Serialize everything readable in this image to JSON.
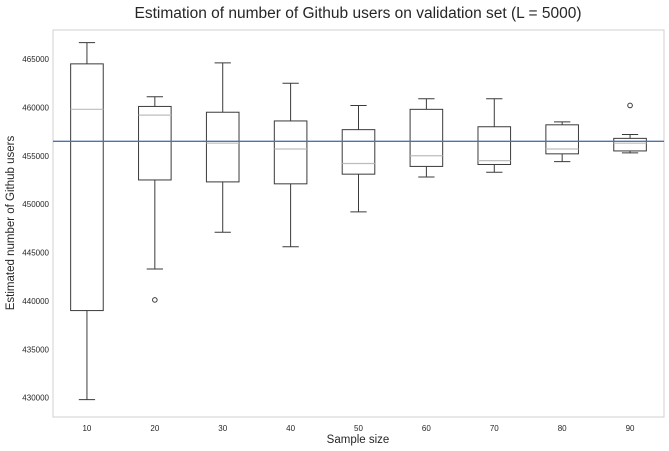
{
  "chart_data": {
    "type": "box",
    "title": "Estimation of number of Github users on validation set (L = 5000)",
    "xlabel": "Sample size",
    "ylabel": "Estimated number of Github users",
    "ylim": [
      428000,
      468000
    ],
    "yticks": [
      430000,
      435000,
      440000,
      445000,
      450000,
      455000,
      460000,
      465000
    ],
    "grid": false,
    "reference_line": {
      "value": 456500,
      "color": "#4c72b0"
    },
    "box_color": "#3a3a3a",
    "median_color": "#bdbdbd",
    "categories": [
      "10",
      "20",
      "30",
      "40",
      "50",
      "60",
      "70",
      "80",
      "90"
    ],
    "boxes": [
      {
        "whisker_low": 429800,
        "q1": 439000,
        "median": 459800,
        "q3": 464500,
        "whisker_high": 466700,
        "outliers": []
      },
      {
        "whisker_low": 443300,
        "q1": 452500,
        "median": 459200,
        "q3": 460100,
        "whisker_high": 461100,
        "outliers": [
          440100
        ]
      },
      {
        "whisker_low": 447100,
        "q1": 452300,
        "median": 456300,
        "q3": 459500,
        "whisker_high": 464600,
        "outliers": []
      },
      {
        "whisker_low": 445600,
        "q1": 452100,
        "median": 455700,
        "q3": 458600,
        "whisker_high": 462500,
        "outliers": []
      },
      {
        "whisker_low": 449200,
        "q1": 453100,
        "median": 454200,
        "q3": 457700,
        "whisker_high": 460200,
        "outliers": []
      },
      {
        "whisker_low": 452800,
        "q1": 453900,
        "median": 455000,
        "q3": 459800,
        "whisker_high": 460900,
        "outliers": []
      },
      {
        "whisker_low": 453300,
        "q1": 454100,
        "median": 454500,
        "q3": 458000,
        "whisker_high": 460900,
        "outliers": []
      },
      {
        "whisker_low": 454400,
        "q1": 455200,
        "median": 455700,
        "q3": 458200,
        "whisker_high": 458500,
        "outliers": []
      },
      {
        "whisker_low": 455300,
        "q1": 455500,
        "median": 456300,
        "q3": 456800,
        "whisker_high": 457200,
        "outliers": [
          460200
        ]
      }
    ]
  }
}
